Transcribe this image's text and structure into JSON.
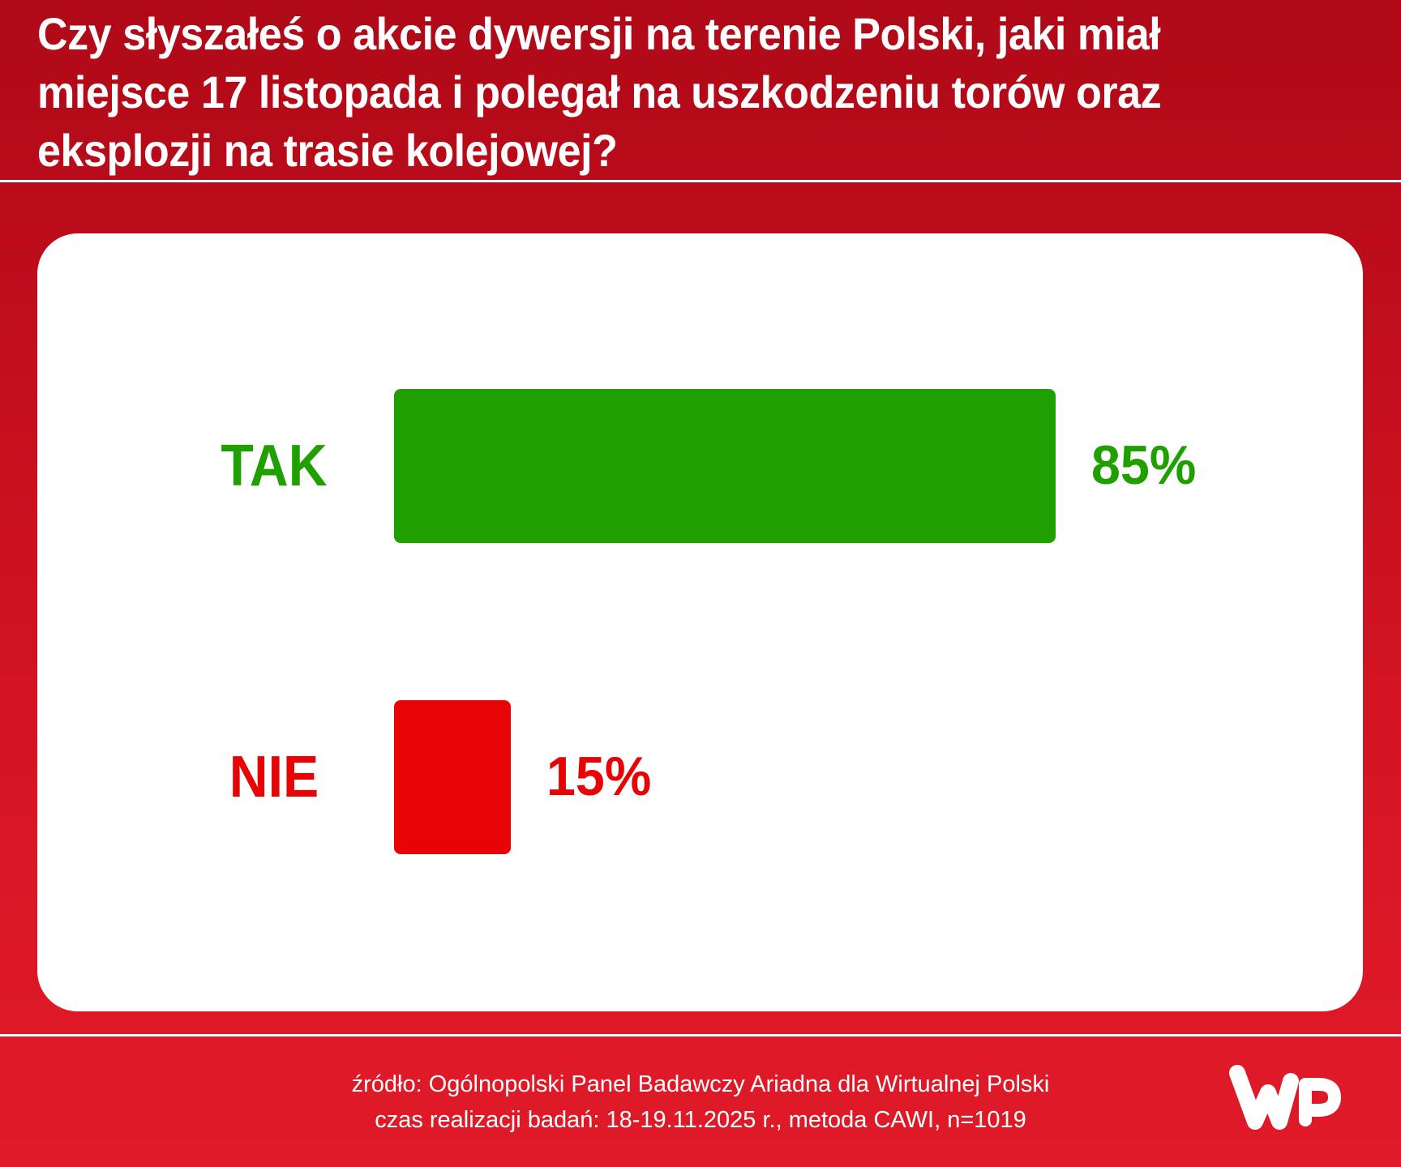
{
  "title": "Czy słyszałeś o akcie dywersji na terenie Polski, jaki miał miejsce 17 listopada i polegał na uszkodzeniu torów oraz eksplozji na trasie kolejowej?",
  "title_lines": [
    "Czy słyszałeś o akcie dywersji na terenie Polski, jaki miał",
    "miejsce 17 listopada i polegał na uszkodzeniu torów oraz",
    "eksplozji na trasie kolejowej?"
  ],
  "chart_data": {
    "type": "bar",
    "orientation": "horizontal",
    "title": "Czy słyszałeś o akcie dywersji na terenie Polski, jaki miał miejsce 17 listopada i polegał na uszkodzeniu torów oraz eksplozji na trasie kolejowej?",
    "categories": [
      "TAK",
      "NIE"
    ],
    "values": [
      85,
      15
    ],
    "value_labels": [
      "85%",
      "15%"
    ],
    "colors": [
      "#1fa000",
      "#e80304"
    ],
    "unit": "%",
    "xlim": [
      0,
      100
    ],
    "grid": false,
    "legend": "none",
    "xlabel": "",
    "ylabel": ""
  },
  "rows": [
    {
      "label": "TAK",
      "value": 85,
      "value_label": "85%",
      "color": "#1fa000"
    },
    {
      "label": "NIE",
      "value": 15,
      "value_label": "15%",
      "color": "#e80304"
    }
  ],
  "footer": {
    "source": "źródło: Ogólnopolski Panel Badawczy Ariadna dla Wirtualnej Polski",
    "method": "czas realizacji badań: 18-19.11.2025 r., metoda CAWI, n=1019"
  },
  "logo": {
    "name": "wp-logo",
    "color": "#ffffff"
  },
  "colors": {
    "background_top": "#af0917",
    "background_bottom": "#e01b29",
    "card": "#ffffff"
  }
}
